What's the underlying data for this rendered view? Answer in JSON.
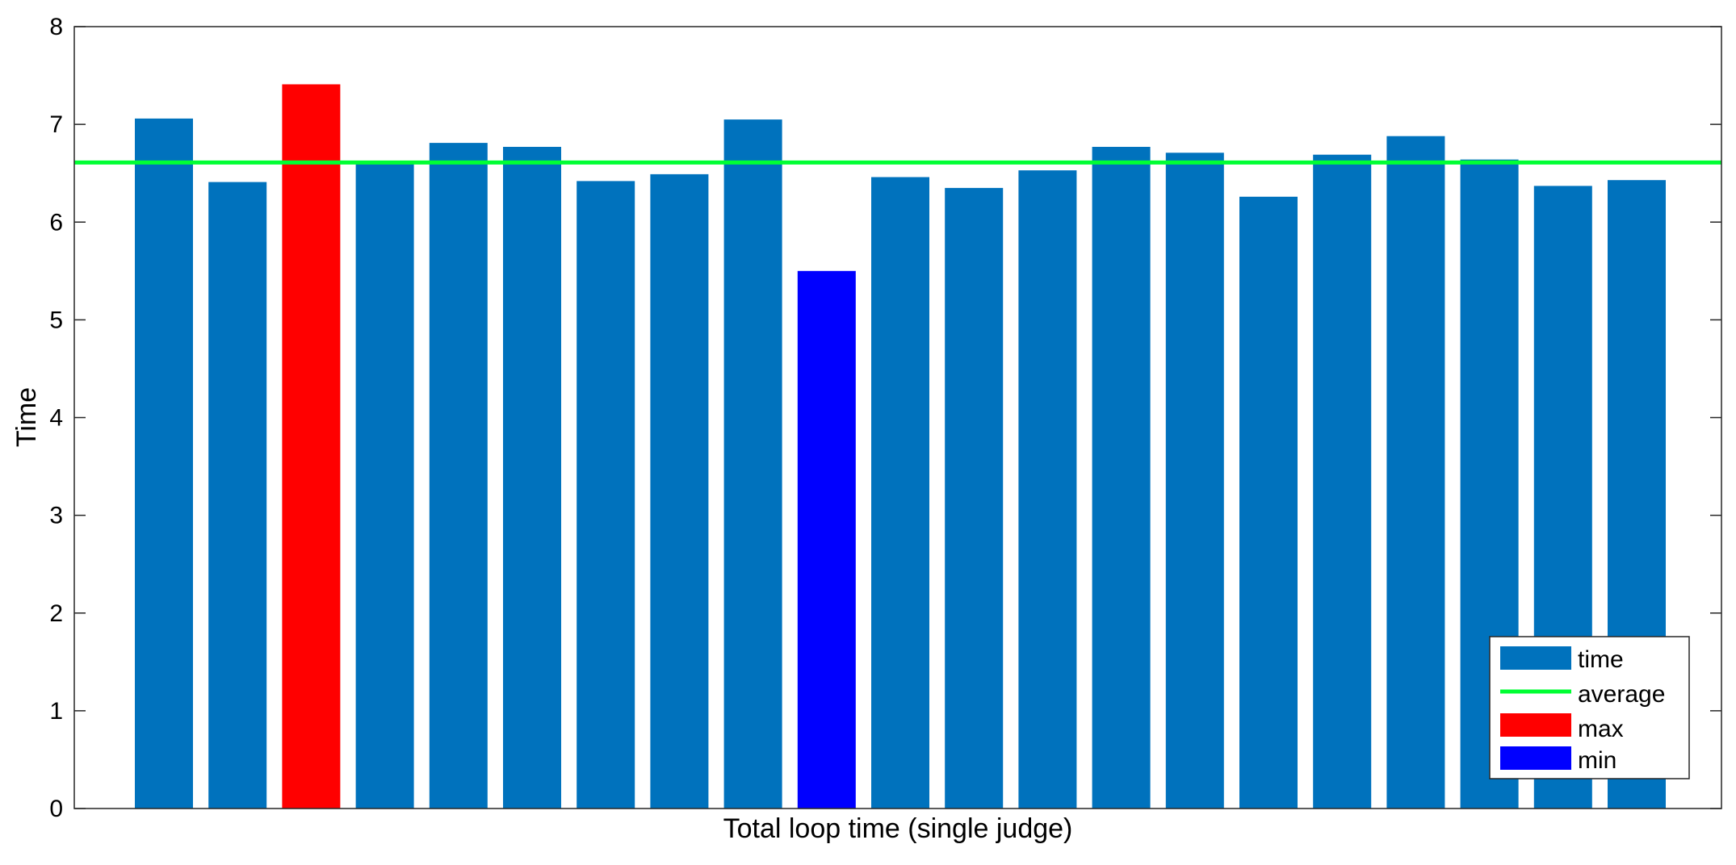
{
  "chart_data": {
    "type": "bar",
    "xlabel": "Total loop time (single judge)",
    "ylabel": "Time",
    "ylim": [
      0,
      8
    ],
    "yticks": [
      "0",
      "1",
      "2",
      "3",
      "4",
      "5",
      "6",
      "7",
      "8"
    ],
    "grid": false,
    "series": [
      {
        "name": "time",
        "color": "#0072BD",
        "values": [
          7.06,
          6.41,
          7.41,
          6.62,
          6.81,
          6.77,
          6.42,
          6.49,
          7.05,
          5.5,
          6.46,
          6.35,
          6.53,
          6.77,
          6.71,
          6.26,
          6.69,
          6.88,
          6.64,
          6.37,
          6.43
        ]
      }
    ],
    "average": {
      "name": "average",
      "value": 6.61,
      "color": "#00FF33"
    },
    "max": {
      "name": "max",
      "index": 2,
      "color": "#FF0000"
    },
    "min": {
      "name": "min",
      "index": 9,
      "color": "#0000FF"
    },
    "legend": {
      "placement": "bottom-right",
      "entries": [
        {
          "label": "time",
          "kind": "patch",
          "color": "#0072BD"
        },
        {
          "label": "average",
          "kind": "line",
          "color": "#00FF33"
        },
        {
          "label": "max",
          "kind": "patch",
          "color": "#FF0000"
        },
        {
          "label": "min",
          "kind": "patch",
          "color": "#0000FF"
        }
      ]
    }
  }
}
